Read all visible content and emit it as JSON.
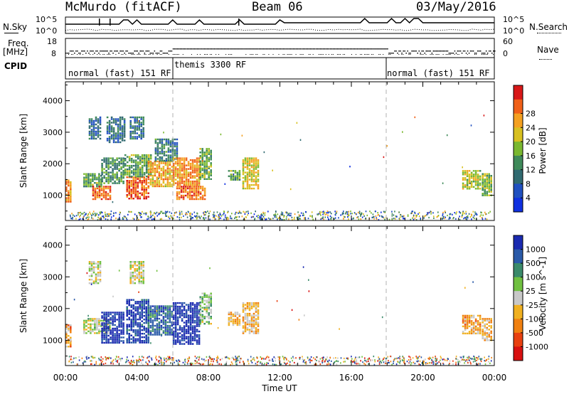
{
  "header": {
    "station": "McMurdo (fitACF)",
    "beam": "Beam 06",
    "date": "03/May/2016"
  },
  "noise_panel": {
    "left_label": "N.Sky",
    "right_label": "N.Search",
    "left_top_tick": "10^5",
    "left_bottom_tick": "10^0",
    "right_top_tick": "10^5",
    "right_bottom_tick": "10^0"
  },
  "freq_panel": {
    "left_label_1": "Freq.",
    "left_label_2": "[MHz]",
    "right_label": "Nave",
    "left_top_tick": "18",
    "left_bottom_tick": "8",
    "right_top_tick": "60",
    "right_bottom_tick": "0"
  },
  "cpid": {
    "label": "CPID",
    "segments": [
      {
        "text": "normal (fast) 151 RF",
        "start_hour": 0
      },
      {
        "text": "themis 3300 RF",
        "start_hour": 6
      },
      {
        "text": "normal (fast) 151 RF",
        "start_hour": 18
      }
    ]
  },
  "power_panel": {
    "ylabel": "Slant Range [km]",
    "yticks": [
      "1000",
      "2000",
      "3000",
      "4000"
    ],
    "colorbar_label": "Power [dB]",
    "colorbar_ticks": [
      "4",
      "8",
      "12",
      "16",
      "20",
      "24",
      "28"
    ],
    "colors": [
      "#1030e0",
      "#2050c0",
      "#306a70",
      "#3f8a5a",
      "#7ab830",
      "#d8c020",
      "#f4a020",
      "#f06018",
      "#d81818"
    ]
  },
  "velocity_panel": {
    "ylabel": "Slant Range [km]",
    "yticks": [
      "1000",
      "2000",
      "3000",
      "4000"
    ],
    "colorbar_label": "Velocity [m s^-1]",
    "colorbar_ticks": [
      "1000",
      "500",
      "100",
      "25",
      "-25",
      "-100",
      "-500",
      "-1000"
    ],
    "colors": [
      "#1a2ab0",
      "#2a5aa8",
      "#3a8a6a",
      "#70c040",
      "#c8c8c8",
      "#f0b020",
      "#f08010",
      "#e84010",
      "#d81010"
    ]
  },
  "x_axis": {
    "ticks": [
      "00:00",
      "04:00",
      "08:00",
      "12:00",
      "16:00",
      "20:00",
      "00:00"
    ],
    "label": "Time UT"
  },
  "chart_data": [
    {
      "type": "heatmap",
      "title": "Power",
      "x_unit": "hours UT",
      "xlim": [
        0,
        24
      ],
      "ylim": [
        200,
        4600
      ],
      "ylabel": "Slant Range [km]",
      "colorbar_label": "Power [dB]",
      "color_range": [
        0,
        32
      ],
      "cells": [
        {
          "t0": 0.0,
          "t1": 0.35,
          "r0": 800,
          "r1": 1500,
          "v": 24
        },
        {
          "t0": 1.0,
          "t1": 2.0,
          "r0": 1300,
          "r1": 1700,
          "v": 14
        },
        {
          "t0": 1.5,
          "t1": 2.5,
          "r0": 900,
          "r1": 1300,
          "v": 26
        },
        {
          "t0": 2.0,
          "t1": 3.3,
          "r0": 1400,
          "r1": 2200,
          "v": 12
        },
        {
          "t0": 1.3,
          "t1": 2.0,
          "r0": 2800,
          "r1": 3500,
          "v": 8
        },
        {
          "t0": 2.3,
          "t1": 3.3,
          "r0": 2700,
          "r1": 3500,
          "v": 9
        },
        {
          "t0": 3.4,
          "t1": 4.6,
          "r0": 900,
          "r1": 1600,
          "v": 27
        },
        {
          "t0": 3.3,
          "t1": 4.8,
          "r0": 1600,
          "r1": 2300,
          "v": 14
        },
        {
          "t0": 3.6,
          "t1": 4.4,
          "r0": 2800,
          "r1": 3500,
          "v": 9
        },
        {
          "t0": 4.6,
          "t1": 6.0,
          "r0": 1300,
          "r1": 2100,
          "v": 22
        },
        {
          "t0": 5.0,
          "t1": 6.2,
          "r0": 2100,
          "r1": 2800,
          "v": 10
        },
        {
          "t0": 6.0,
          "t1": 7.5,
          "r0": 1300,
          "r1": 2200,
          "v": 24
        },
        {
          "t0": 6.2,
          "t1": 7.8,
          "r0": 900,
          "r1": 1300,
          "v": 26
        },
        {
          "t0": 7.5,
          "t1": 8.2,
          "r0": 1500,
          "r1": 2500,
          "v": 15
        },
        {
          "t0": 9.1,
          "t1": 9.7,
          "r0": 1500,
          "r1": 1800,
          "v": 14
        },
        {
          "t0": 9.9,
          "t1": 10.8,
          "r0": 1200,
          "r1": 2200,
          "v": 20
        },
        {
          "t0": 22.2,
          "t1": 23.2,
          "r0": 1200,
          "r1": 1800,
          "v": 18
        },
        {
          "t0": 23.3,
          "t1": 23.8,
          "r0": 1000,
          "r1": 1700,
          "v": 16
        }
      ]
    },
    {
      "type": "heatmap",
      "title": "Velocity",
      "x_unit": "hours UT",
      "xlim": [
        0,
        24
      ],
      "ylim": [
        200,
        4600
      ],
      "ylabel": "Slant Range [km]",
      "colorbar_label": "Velocity [m s^-1]",
      "color_range": [
        -1000,
        1000
      ],
      "cells": [
        {
          "t0": 0.0,
          "t1": 0.35,
          "r0": 800,
          "r1": 1500,
          "v": -300
        },
        {
          "t0": 1.0,
          "t1": 2.5,
          "r0": 1200,
          "r1": 1700,
          "v": 80
        },
        {
          "t0": 2.0,
          "t1": 3.3,
          "r0": 900,
          "r1": 1900,
          "v": 900
        },
        {
          "t0": 1.3,
          "t1": 2.0,
          "r0": 2800,
          "r1": 3500,
          "v": 60
        },
        {
          "t0": 3.4,
          "t1": 4.6,
          "r0": 900,
          "r1": 2300,
          "v": 800
        },
        {
          "t0": 3.6,
          "t1": 4.4,
          "r0": 2800,
          "r1": 3500,
          "v": 20
        },
        {
          "t0": 4.6,
          "t1": 6.0,
          "r0": 1200,
          "r1": 2100,
          "v": 600
        },
        {
          "t0": 6.0,
          "t1": 7.5,
          "r0": 900,
          "r1": 2200,
          "v": 900
        },
        {
          "t0": 7.5,
          "t1": 8.2,
          "r0": 1500,
          "r1": 2500,
          "v": 150
        },
        {
          "t0": 9.1,
          "t1": 9.7,
          "r0": 1500,
          "r1": 1900,
          "v": -150
        },
        {
          "t0": 9.9,
          "t1": 10.8,
          "r0": 1200,
          "r1": 2200,
          "v": -200
        },
        {
          "t0": 22.2,
          "t1": 23.2,
          "r0": 1200,
          "r1": 1800,
          "v": -300
        },
        {
          "t0": 23.3,
          "t1": 23.8,
          "r0": 1000,
          "r1": 1700,
          "v": -250
        }
      ]
    }
  ]
}
